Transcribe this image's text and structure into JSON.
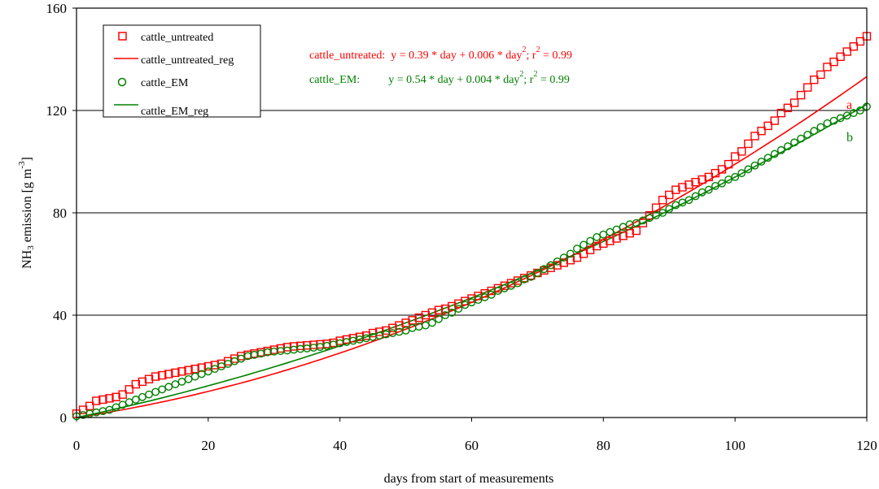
{
  "chart_data": {
    "type": "scatter",
    "xlabel": "days from start of measurements",
    "ylabel_main": "NH",
    "ylabel_sub": "3",
    "ylabel_rest": " emission [g m",
    "ylabel_sup": "-3",
    "ylabel_end": "]",
    "xlim": [
      0,
      120
    ],
    "ylim": [
      0,
      160
    ],
    "x_ticks": [
      0,
      20,
      40,
      60,
      80,
      100,
      120
    ],
    "y_ticks": [
      0,
      40,
      80,
      120,
      160
    ],
    "gridlines": "horizontal",
    "legend_position": "top-left",
    "colors": {
      "untreated": "#ff0000",
      "em": "#008000"
    },
    "series": [
      {
        "name": "cattle_untreated",
        "marker": "square",
        "color": "#ff0000",
        "points": [
          [
            0,
            1.5
          ],
          [
            1,
            3
          ],
          [
            2,
            4.5
          ],
          [
            3,
            6.5
          ],
          [
            4,
            7
          ],
          [
            5,
            7.5
          ],
          [
            6,
            8
          ],
          [
            7,
            9
          ],
          [
            8,
            11
          ],
          [
            9,
            13
          ],
          [
            10,
            14
          ],
          [
            11,
            15
          ],
          [
            12,
            16
          ],
          [
            13,
            16.5
          ],
          [
            14,
            17
          ],
          [
            15,
            17.5
          ],
          [
            16,
            18
          ],
          [
            17,
            18.5
          ],
          [
            18,
            19
          ],
          [
            19,
            19.5
          ],
          [
            20,
            20
          ],
          [
            21,
            20.5
          ],
          [
            22,
            21
          ],
          [
            23,
            22
          ],
          [
            24,
            23
          ],
          [
            25,
            24
          ],
          [
            26,
            24.5
          ],
          [
            27,
            25
          ],
          [
            28,
            25.5
          ],
          [
            29,
            26
          ],
          [
            30,
            26.5
          ],
          [
            31,
            27
          ],
          [
            32,
            27.5
          ],
          [
            33,
            27.8
          ],
          [
            34,
            28
          ],
          [
            35,
            28.2
          ],
          [
            36,
            28.4
          ],
          [
            37,
            28.6
          ],
          [
            38,
            28.8
          ],
          [
            39,
            29.2
          ],
          [
            40,
            30
          ],
          [
            41,
            30.5
          ],
          [
            42,
            31
          ],
          [
            43,
            31.5
          ],
          [
            44,
            32
          ],
          [
            45,
            33
          ],
          [
            46,
            33.5
          ],
          [
            47,
            34
          ],
          [
            48,
            35
          ],
          [
            49,
            36
          ],
          [
            50,
            37
          ],
          [
            51,
            38
          ],
          [
            52,
            39
          ],
          [
            53,
            40
          ],
          [
            54,
            41
          ],
          [
            55,
            42
          ],
          [
            56,
            42.5
          ],
          [
            57,
            43.5
          ],
          [
            58,
            44.5
          ],
          [
            59,
            45.5
          ],
          [
            60,
            46.5
          ],
          [
            61,
            47.5
          ],
          [
            62,
            48.5
          ],
          [
            63,
            49.5
          ],
          [
            64,
            50.5
          ],
          [
            65,
            51.5
          ],
          [
            66,
            52.5
          ],
          [
            67,
            53.5
          ],
          [
            68,
            54.5
          ],
          [
            69,
            55.5
          ],
          [
            70,
            56.5
          ],
          [
            71,
            57.5
          ],
          [
            72,
            58.5
          ],
          [
            73,
            59.5
          ],
          [
            74,
            60.5
          ],
          [
            75,
            61.5
          ],
          [
            76,
            62.5
          ],
          [
            77,
            64
          ],
          [
            78,
            65.5
          ],
          [
            79,
            67
          ],
          [
            80,
            68
          ],
          [
            81,
            69
          ],
          [
            82,
            70
          ],
          [
            83,
            71
          ],
          [
            84,
            72
          ],
          [
            85,
            73
          ],
          [
            86,
            76
          ],
          [
            87,
            79
          ],
          [
            88,
            82
          ],
          [
            89,
            85
          ],
          [
            90,
            87
          ],
          [
            91,
            89
          ],
          [
            92,
            90
          ],
          [
            93,
            91
          ],
          [
            94,
            92
          ],
          [
            95,
            93
          ],
          [
            96,
            94
          ],
          [
            97,
            95.5
          ],
          [
            98,
            97
          ],
          [
            99,
            99
          ],
          [
            100,
            102
          ],
          [
            101,
            104
          ],
          [
            102,
            107
          ],
          [
            103,
            110
          ],
          [
            104,
            112
          ],
          [
            105,
            114
          ],
          [
            106,
            116
          ],
          [
            107,
            119
          ],
          [
            108,
            121
          ],
          [
            109,
            123
          ],
          [
            110,
            126
          ],
          [
            111,
            129
          ],
          [
            112,
            132
          ],
          [
            113,
            134
          ],
          [
            114,
            137
          ],
          [
            115,
            139
          ],
          [
            116,
            141
          ],
          [
            117,
            143
          ],
          [
            118,
            145
          ],
          [
            119,
            147
          ],
          [
            120,
            149
          ]
        ]
      },
      {
        "name": "cattle_untreated_reg",
        "color": "#ff0000",
        "equation_a": 0.39,
        "equation_b": 0.006,
        "label": "a"
      },
      {
        "name": "cattle_EM",
        "marker": "circle",
        "color": "#008000",
        "points": [
          [
            0,
            0.5
          ],
          [
            1,
            1
          ],
          [
            2,
            1.5
          ],
          [
            3,
            2
          ],
          [
            4,
            2.5
          ],
          [
            5,
            3
          ],
          [
            6,
            4
          ],
          [
            7,
            5
          ],
          [
            8,
            6
          ],
          [
            9,
            7
          ],
          [
            10,
            8
          ],
          [
            11,
            9
          ],
          [
            12,
            10
          ],
          [
            13,
            11
          ],
          [
            14,
            12
          ],
          [
            15,
            13
          ],
          [
            16,
            14
          ],
          [
            17,
            15
          ],
          [
            18,
            16
          ],
          [
            19,
            17
          ],
          [
            20,
            18
          ],
          [
            21,
            19
          ],
          [
            22,
            20
          ],
          [
            23,
            21
          ],
          [
            24,
            22
          ],
          [
            25,
            23
          ],
          [
            26,
            24
          ],
          [
            27,
            24.5
          ],
          [
            28,
            25
          ],
          [
            29,
            25.5
          ],
          [
            30,
            25.8
          ],
          [
            31,
            26
          ],
          [
            32,
            26.2
          ],
          [
            33,
            26.5
          ],
          [
            34,
            26.8
          ],
          [
            35,
            27
          ],
          [
            36,
            27.3
          ],
          [
            37,
            27.6
          ],
          [
            38,
            28
          ],
          [
            39,
            28.5
          ],
          [
            40,
            29
          ],
          [
            41,
            29.5
          ],
          [
            42,
            30
          ],
          [
            43,
            30.5
          ],
          [
            44,
            31
          ],
          [
            45,
            31.5
          ],
          [
            46,
            32
          ],
          [
            47,
            32.5
          ],
          [
            48,
            33
          ],
          [
            49,
            33.5
          ],
          [
            50,
            34
          ],
          [
            51,
            35
          ],
          [
            52,
            35.5
          ],
          [
            53,
            36
          ],
          [
            54,
            37
          ],
          [
            55,
            38.5
          ],
          [
            56,
            40
          ],
          [
            57,
            41
          ],
          [
            58,
            42.5
          ],
          [
            59,
            44
          ],
          [
            60,
            45
          ],
          [
            61,
            46
          ],
          [
            62,
            47
          ],
          [
            63,
            48
          ],
          [
            64,
            49.5
          ],
          [
            65,
            50.5
          ],
          [
            66,
            51.5
          ],
          [
            67,
            52.5
          ],
          [
            68,
            54
          ],
          [
            69,
            55
          ],
          [
            70,
            56.5
          ],
          [
            71,
            58
          ],
          [
            72,
            59.5
          ],
          [
            73,
            61
          ],
          [
            74,
            62.5
          ],
          [
            75,
            64
          ],
          [
            76,
            66
          ],
          [
            77,
            67.5
          ],
          [
            78,
            69
          ],
          [
            79,
            70.5
          ],
          [
            80,
            71.5
          ],
          [
            81,
            72.5
          ],
          [
            82,
            73.5
          ],
          [
            83,
            74.5
          ],
          [
            84,
            75.5
          ],
          [
            85,
            76
          ],
          [
            86,
            77
          ],
          [
            87,
            78
          ],
          [
            88,
            79
          ],
          [
            89,
            80
          ],
          [
            90,
            81.5
          ],
          [
            91,
            83
          ],
          [
            92,
            84
          ],
          [
            93,
            85
          ],
          [
            94,
            86.5
          ],
          [
            95,
            88
          ],
          [
            96,
            89
          ],
          [
            97,
            90.5
          ],
          [
            98,
            91.5
          ],
          [
            99,
            93
          ],
          [
            100,
            94
          ],
          [
            101,
            95.5
          ],
          [
            102,
            97
          ],
          [
            103,
            98.5
          ],
          [
            104,
            100
          ],
          [
            105,
            101.5
          ],
          [
            106,
            103
          ],
          [
            107,
            104.5
          ],
          [
            108,
            106
          ],
          [
            109,
            107.5
          ],
          [
            110,
            109
          ],
          [
            111,
            110.5
          ],
          [
            112,
            112
          ],
          [
            113,
            113.5
          ],
          [
            114,
            115
          ],
          [
            115,
            116
          ],
          [
            116,
            117
          ],
          [
            117,
            118
          ],
          [
            118,
            119
          ],
          [
            119,
            120
          ],
          [
            120,
            121.5
          ]
        ]
      },
      {
        "name": "cattle_EM_reg",
        "color": "#008000",
        "equation_a": 0.54,
        "equation_b": 0.004,
        "label": "b"
      }
    ],
    "equations": [
      {
        "prefix": "cattle_untreated:  y = 0.39 * day + 0.006 * day",
        "exp": "2",
        "mid": "; r",
        "exp2": "2",
        "suffix": " = 0.99",
        "color": "#ff0000"
      },
      {
        "prefix": "cattle_EM:          y = 0.54 * day + 0.004 * day",
        "exp": "2",
        "mid": "; r",
        "exp2": "2",
        "suffix": " = 0.99",
        "color": "#008000"
      }
    ],
    "curve_labels": [
      "a",
      "b"
    ]
  }
}
